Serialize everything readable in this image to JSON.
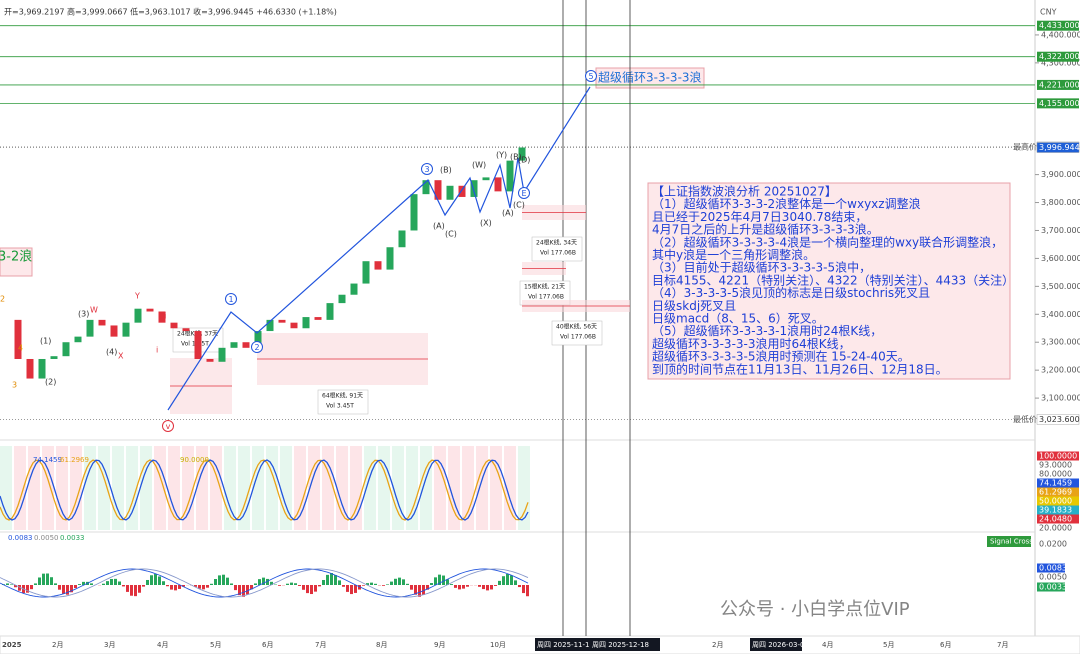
{
  "header": {
    "quote": "开=3,969.2197 高=3,999.0667 低=3,963.1017 收=3,996.9445 +46.6330 (+1.18%)",
    "currency": "CNY"
  },
  "price_axis": {
    "ylim": [
      2950,
      4525
    ],
    "ticks": [
      {
        "value": 4400,
        "label": "4,400.0000"
      },
      {
        "value": 4300,
        "label": "4,300.0000"
      },
      {
        "value": 3900,
        "label": "3,900.0000"
      },
      {
        "value": 3800,
        "label": "3,800.0000"
      },
      {
        "value": 3700,
        "label": "3,700.0000"
      },
      {
        "value": 3600,
        "label": "3,600.0000"
      },
      {
        "value": 3500,
        "label": "3,500.0000"
      },
      {
        "value": 3400,
        "label": "3,400.0000"
      },
      {
        "value": 3300,
        "label": "3,300.0000"
      },
      {
        "value": 3200,
        "label": "3,200.0000"
      },
      {
        "value": 3100,
        "label": "3,100.0000"
      }
    ]
  },
  "levels": [
    {
      "value": 4433,
      "label": "4,433.0000"
    },
    {
      "value": 4322,
      "label": "4,322.0000"
    },
    {
      "value": 4221,
      "label": "4,221.0000"
    },
    {
      "value": 4155,
      "label": "4,155.0000"
    }
  ],
  "high": {
    "name": "最高价",
    "value": 3999.0667,
    "label": "3,999.0667"
  },
  "last": {
    "value": 3996.9445,
    "label": "3,996.9445"
  },
  "low": {
    "name": "最低价",
    "value": 3023.6002,
    "label": "3,023.6002"
  },
  "candles": {
    "closes": [
      3380,
      3240,
      3170,
      3240,
      3250,
      3300,
      3320,
      3380,
      3360,
      3320,
      3370,
      3420,
      3410,
      3370,
      3350,
      3340,
      3240,
      3230,
      3280,
      3300,
      3280,
      3340,
      3380,
      3370,
      3350,
      3390,
      3380,
      3440,
      3470,
      3510,
      3590,
      3560,
      3640,
      3700,
      3830,
      3880,
      3810,
      3860,
      3820,
      3880,
      3890,
      3840,
      3950,
      3997
    ]
  },
  "wave_circles": [
    "1",
    "2",
    "3",
    "5",
    "E",
    "v"
  ],
  "wave_labels": [
    "(B)",
    "(A)",
    "(C)",
    "(W)",
    "(X)",
    "(Y)",
    "(B)",
    "(D)",
    "(A)",
    "(C)",
    "(3)",
    "(4)",
    "(1)",
    "(2)",
    "4",
    "3",
    "2",
    "W",
    "X",
    "Y",
    "i",
    "ii"
  ],
  "cycle_label": "超级循环3-3-3-3浪",
  "left_label": "3-2浪",
  "measures": [
    {
      "bars": "24根K线, 37天",
      "vol": "Vol 1.15T"
    },
    {
      "bars": "64根K线, 91天",
      "vol": "Vol 3.45T"
    },
    {
      "bars": "24根K线, 34天",
      "vol": "Vol 177.06B"
    },
    {
      "bars": "15根K线, 21天",
      "vol": "Vol 177.06B"
    },
    {
      "bars": "40根K线, 56天",
      "vol": "Vol 177.06B"
    }
  ],
  "analysis": {
    "lines": [
      "【上证指数波浪分析 20251027】",
      "（1）超级循环3-3-3-2浪整体是一个wxyxz调整浪",
      "且已经于2025年4月7日3040.78结束，",
      "4月7日之后的上升是超级循环3-3-3-3浪。",
      "（2）超级循环3-3-3-3-4浪是一个横向整理的wxy联合形调整浪，",
      "其中y浪是一个三角形调整浪。",
      "（3）目前处于超级循环3-3-3-3-5浪中，",
      "目标4155、4221（特别关注）、4322（特别关注）、4433（关注）",
      "（4）3-3-3-3-5浪见顶的标志是日级stochris死叉且",
      "日级skdj死叉且",
      "日级macd（8、15、6）死叉。",
      "（5）超级循环3-3-3-3-1浪用时24根K线，",
      "超级循环3-3-3-3-3浪用时64根K线，",
      "超级循环3-3-3-3-5浪用时预测在 15-24-40天。",
      "到顶的时间节点在11月13日、11月26日、12月18日。"
    ]
  },
  "oscillator": {
    "legend": [
      "74.1459",
      "61.2969",
      "90.0000"
    ],
    "axis": [
      "100.0000",
      "93.0000",
      "80.0000",
      "74.1459",
      "61.2969",
      "50.0000",
      "39.1833",
      "24.0480",
      "20.0000"
    ]
  },
  "macd": {
    "legend": [
      "0.0083",
      "0.0050",
      "0.0033"
    ],
    "axis": [
      "0.0200",
      "0.0083",
      "0.0050",
      "0.0033"
    ],
    "signal": "Signal Cross"
  },
  "time_axis": [
    "2025",
    "2月",
    "3月",
    "4月",
    "5月",
    "6月",
    "7月",
    "8月",
    "9月",
    "10月",
    "周四 2025-11-13",
    "周四 2025-12-18",
    "2月",
    "周四 2026-03-05",
    "4月",
    "5月",
    "6月",
    "7月"
  ],
  "watermark": "公众号 · 小白学点位VIP"
}
